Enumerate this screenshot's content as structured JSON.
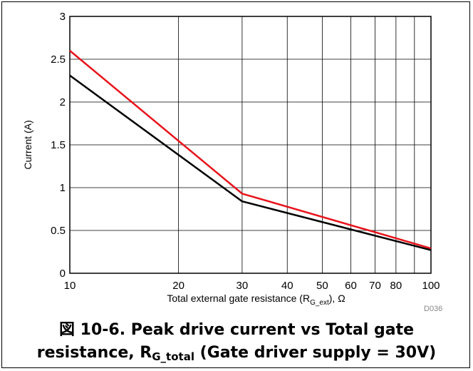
{
  "chart_data": {
    "type": "line",
    "xscale": "log",
    "xlim": [
      10,
      100
    ],
    "ylim": [
      0,
      3
    ],
    "xticks": [
      10,
      20,
      30,
      40,
      50,
      60,
      70,
      80,
      100
    ],
    "xgrid": [
      10,
      20,
      30,
      40,
      50,
      60,
      70,
      80,
      90,
      100
    ],
    "yticks": [
      0,
      0.5,
      1,
      1.5,
      2,
      2.5,
      3
    ],
    "ylabel": "Current (A)",
    "xlabel_text": "Total external gate resistance (R",
    "xlabel_sub": "G_ext",
    "xlabel_after": "), Ω",
    "code": "D036",
    "grid": true,
    "series": [
      {
        "color": "#e8131b",
        "x": [
          10,
          30,
          100
        ],
        "y": [
          2.6,
          0.93,
          0.29
        ]
      },
      {
        "color": "#000000",
        "x": [
          10,
          30,
          100
        ],
        "y": [
          2.31,
          0.84,
          0.27
        ]
      }
    ]
  },
  "caption": {
    "line1": "図 10-6. Peak drive current vs Total gate",
    "line2_a": "resistance, R",
    "line2_sub": "G_total",
    "line2_b": " (Gate driver supply = 30V)"
  }
}
